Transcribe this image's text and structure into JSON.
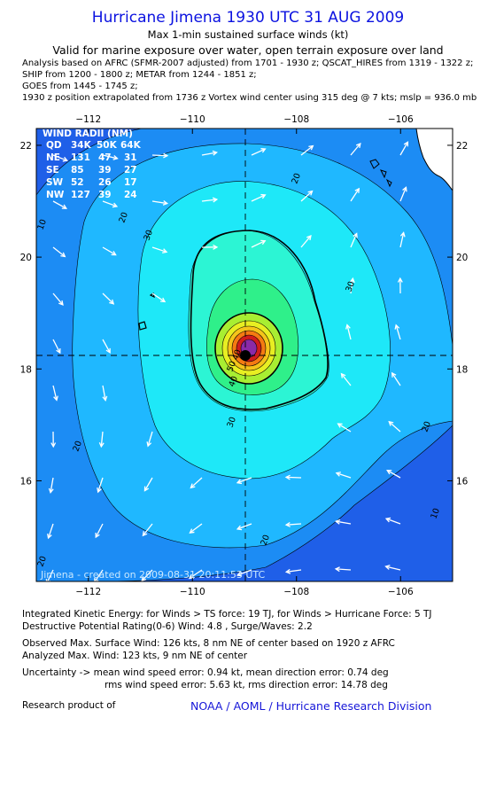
{
  "header": {
    "title": "Hurricane Jimena 1930 UTC 31 AUG 2009",
    "subtitle1": "Max 1-min sustained surface winds (kt)",
    "subtitle2": "Valid for marine exposure over water, open terrain exposure over land",
    "info_lines": [
      "Analysis based on  AFRC (SFMR-2007 adjusted) from 1701 - 1930 z;  QSCAT_HIRES from 1319 - 1322 z;",
      "SHIP from 1200 - 1800 z;  METAR from 1244 - 1851 z;",
      "GOES from 1445 - 1745 z;",
      "1930 z position extrapolated from 1736 z Vortex wind center using 315 deg @ 7 kts; mslp = 936.0 mb"
    ]
  },
  "map": {
    "x_ticks": [
      {
        "lon": -112,
        "label": "−112"
      },
      {
        "lon": -110,
        "label": "−110"
      },
      {
        "lon": -108,
        "label": "−108"
      },
      {
        "lon": -106,
        "label": "−106"
      }
    ],
    "y_ticks": [
      {
        "lat": 22,
        "label": "22"
      },
      {
        "lat": 20,
        "label": "20"
      },
      {
        "lat": 18,
        "label": "18"
      },
      {
        "lat": 16,
        "label": "16"
      }
    ],
    "lon_range": [
      -113.0,
      -105.0
    ],
    "lat_range": [
      14.2,
      22.3
    ],
    "center": {
      "lon": -108.97,
      "lat": 18.27
    },
    "contour_labels": [
      "10",
      "20",
      "30",
      "40",
      "50"
    ],
    "wind_radii": {
      "title": "WIND RADII (NM)",
      "header": [
        "QD",
        "34K",
        "50K",
        "64K"
      ],
      "rows": [
        [
          "NE",
          "131",
          "47",
          "31"
        ],
        [
          "SE",
          "85",
          "39",
          "27"
        ],
        [
          "SW",
          "52",
          "26",
          "17"
        ],
        [
          "NW",
          "127",
          "39",
          "24"
        ]
      ]
    },
    "credit": "Jimena - created on 2009-08-31 20:11:53 UTC",
    "colors": {
      "ocean_low": "#1f5fe8",
      "ring_20": "#1fb8ff",
      "ring_30": "#1ee8f8",
      "ring_40": "#2cf5d4",
      "ring_50": "#2ff08a",
      "ring_64": "#a8ee32",
      "core_orange": "#f57a12",
      "core_red": "#d01c1c",
      "eye_purple": "#8a2aa8"
    }
  },
  "footer": {
    "lines": [
      "Integrated Kinetic Energy:  for Winds > TS force: 19 TJ,  for Winds > Hurricane Force: 5 TJ",
      "Destructive Potential Rating(0-6)   Wind: 4.8 , Surge/Waves: 2.2",
      "Observed Max. Surface Wind: 126 kts, 8 nm NE of center based on 1920 z AFRC",
      "Analyzed Max. Wind: 123 kts, 9 nm NE of center",
      "Uncertainty -> mean wind speed error: 0.94 kt,   mean direction error: 0.74 deg",
      "rms wind speed error: 5.63 kt,   rms direction error: 14.78 deg"
    ],
    "research_label": "Research product of",
    "org": "NOAA / AOML / Hurricane Research Division"
  }
}
